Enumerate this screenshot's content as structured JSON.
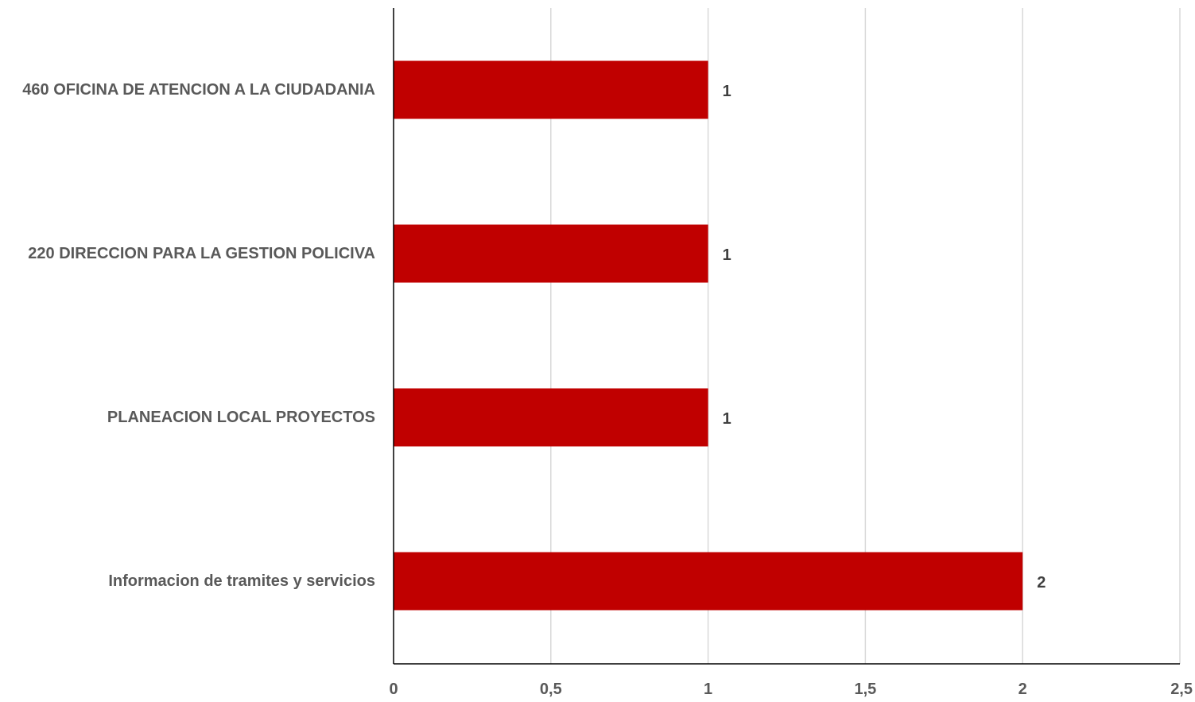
{
  "chart_data": {
    "type": "bar",
    "orientation": "horizontal",
    "categories": [
      "460  OFICINA DE ATENCION A LA CIUDADANIA",
      "220  DIRECCION PARA LA GESTION POLICIVA",
      "PLANEACION LOCAL  PROYECTOS",
      "Informacion de tramites y servicios"
    ],
    "values": [
      1,
      1,
      1,
      2
    ],
    "data_labels": [
      "1",
      "1",
      "1",
      "2"
    ],
    "xlim": [
      0,
      2.5
    ],
    "x_ticks": [
      0,
      0.5,
      1,
      1.5,
      2,
      2.5
    ],
    "x_tick_labels": [
      "0",
      "0,5",
      "1",
      "1,5",
      "2",
      "2,5"
    ],
    "title": "",
    "xlabel": "",
    "ylabel": "",
    "grid": true,
    "legend": "none",
    "bar_color": "#C00000",
    "grid_color": "#D9D9D9",
    "axis_color": "#000000"
  }
}
